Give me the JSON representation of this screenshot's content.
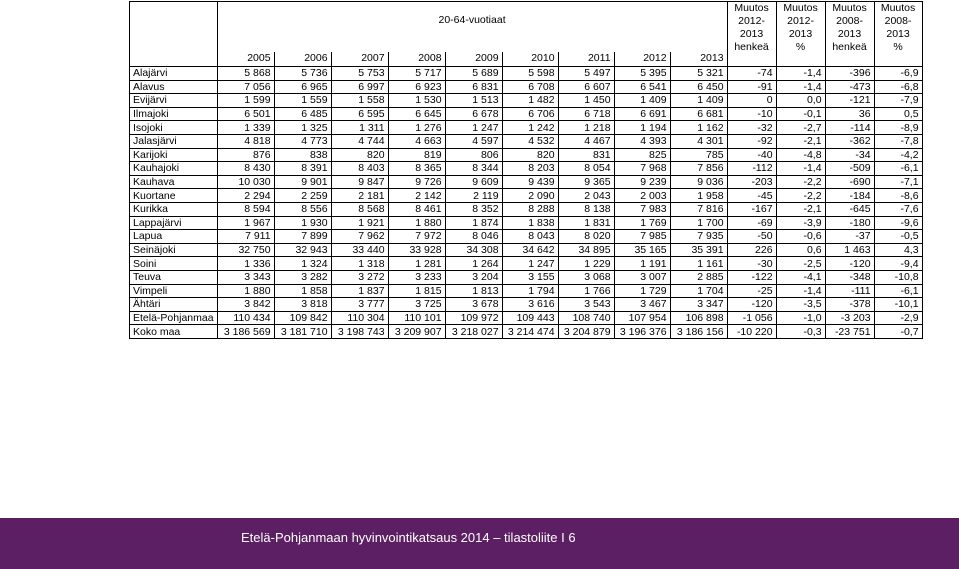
{
  "header": {
    "group_title": "20-64-vuotiaat",
    "years": [
      "2005",
      "2006",
      "2007",
      "2008",
      "2009",
      "2010",
      "2011",
      "2012",
      "2013"
    ],
    "change_cols": [
      {
        "lines": [
          "Muutos",
          "2012-",
          "2013",
          "henkeä"
        ]
      },
      {
        "lines": [
          "Muutos",
          "2012-",
          "2013",
          "%"
        ]
      },
      {
        "lines": [
          "Muutos",
          "2008-",
          "2013",
          "henkeä"
        ]
      },
      {
        "lines": [
          "Muutos",
          "2008-",
          "2013",
          "%"
        ]
      }
    ]
  },
  "rows": [
    {
      "name": "Alajärvi",
      "values": [
        "5 868",
        "5 736",
        "5 753",
        "5 717",
        "5 689",
        "5 598",
        "5 497",
        "5 395",
        "5 321",
        "-74",
        "-1,4",
        "-396",
        "-6,9"
      ]
    },
    {
      "name": "Alavus",
      "values": [
        "7 056",
        "6 965",
        "6 997",
        "6 923",
        "6 831",
        "6 708",
        "6 607",
        "6 541",
        "6 450",
        "-91",
        "-1,4",
        "-473",
        "-6,8"
      ]
    },
    {
      "name": "Evijärvi",
      "values": [
        "1 599",
        "1 559",
        "1 558",
        "1 530",
        "1 513",
        "1 482",
        "1 450",
        "1 409",
        "1 409",
        "0",
        "0,0",
        "-121",
        "-7,9"
      ]
    },
    {
      "name": "Ilmajoki",
      "values": [
        "6 501",
        "6 485",
        "6 595",
        "6 645",
        "6 678",
        "6 706",
        "6 718",
        "6 691",
        "6 681",
        "-10",
        "-0,1",
        "36",
        "0,5"
      ]
    },
    {
      "name": "Isojoki",
      "values": [
        "1 339",
        "1 325",
        "1 311",
        "1 276",
        "1 247",
        "1 242",
        "1 218",
        "1 194",
        "1 162",
        "-32",
        "-2,7",
        "-114",
        "-8,9"
      ]
    },
    {
      "name": "Jalasjärvi",
      "values": [
        "4 818",
        "4 773",
        "4 744",
        "4 663",
        "4 597",
        "4 532",
        "4 467",
        "4 393",
        "4 301",
        "-92",
        "-2,1",
        "-362",
        "-7,8"
      ]
    },
    {
      "name": "Karijoki",
      "values": [
        "876",
        "838",
        "820",
        "819",
        "806",
        "820",
        "831",
        "825",
        "785",
        "-40",
        "-4,8",
        "-34",
        "-4,2"
      ]
    },
    {
      "name": "Kauhajoki",
      "values": [
        "8 430",
        "8 391",
        "8 403",
        "8 365",
        "8 344",
        "8 203",
        "8 054",
        "7 968",
        "7 856",
        "-112",
        "-1,4",
        "-509",
        "-6,1"
      ]
    },
    {
      "name": "Kauhava",
      "values": [
        "10 030",
        "9 901",
        "9 847",
        "9 726",
        "9 609",
        "9 439",
        "9 365",
        "9 239",
        "9 036",
        "-203",
        "-2,2",
        "-690",
        "-7,1"
      ]
    },
    {
      "name": "Kuortane",
      "values": [
        "2 294",
        "2 259",
        "2 181",
        "2 142",
        "2 119",
        "2 090",
        "2 043",
        "2 003",
        "1 958",
        "-45",
        "-2,2",
        "-184",
        "-8,6"
      ]
    },
    {
      "name": "Kurikka",
      "values": [
        "8 594",
        "8 556",
        "8 568",
        "8 461",
        "8 352",
        "8 288",
        "8 138",
        "7 983",
        "7 816",
        "-167",
        "-2,1",
        "-645",
        "-7,6"
      ]
    },
    {
      "name": "Lappajärvi",
      "values": [
        "1 967",
        "1 930",
        "1 921",
        "1 880",
        "1 874",
        "1 838",
        "1 831",
        "1 769",
        "1 700",
        "-69",
        "-3,9",
        "-180",
        "-9,6"
      ]
    },
    {
      "name": "Lapua",
      "values": [
        "7 911",
        "7 899",
        "7 962",
        "7 972",
        "8 046",
        "8 043",
        "8 020",
        "7 985",
        "7 935",
        "-50",
        "-0,6",
        "-37",
        "-0,5"
      ]
    },
    {
      "name": "Seinäjoki",
      "values": [
        "32 750",
        "32 943",
        "33 440",
        "33 928",
        "34 308",
        "34 642",
        "34 895",
        "35 165",
        "35 391",
        "226",
        "0,6",
        "1 463",
        "4,3"
      ]
    },
    {
      "name": "Soini",
      "values": [
        "1 336",
        "1 324",
        "1 318",
        "1 281",
        "1 264",
        "1 247",
        "1 229",
        "1 191",
        "1 161",
        "-30",
        "-2,5",
        "-120",
        "-9,4"
      ]
    },
    {
      "name": "Teuva",
      "values": [
        "3 343",
        "3 282",
        "3 272",
        "3 233",
        "3 204",
        "3 155",
        "3 068",
        "3 007",
        "2 885",
        "-122",
        "-4,1",
        "-348",
        "-10,8"
      ]
    },
    {
      "name": "Vimpeli",
      "values": [
        "1 880",
        "1 858",
        "1 837",
        "1 815",
        "1 813",
        "1 794",
        "1 766",
        "1 729",
        "1 704",
        "-25",
        "-1,4",
        "-111",
        "-6,1"
      ]
    },
    {
      "name": "Ähtäri",
      "values": [
        "3 842",
        "3 818",
        "3 777",
        "3 725",
        "3 678",
        "3 616",
        "3 543",
        "3 467",
        "3 347",
        "-120",
        "-3,5",
        "-378",
        "-10,1"
      ]
    },
    {
      "name": "Etelä-Pohjanmaa",
      "values": [
        "110 434",
        "109 842",
        "110 304",
        "110 101",
        "109 972",
        "109 443",
        "108 740",
        "107 954",
        "106 898",
        "-1 056",
        "-1,0",
        "-3 203",
        "-2,9"
      ]
    },
    {
      "name": "Koko maa",
      "values": [
        "3 186 569",
        "3 181 710",
        "3 198 743",
        "3 209 907",
        "3 218 027",
        "3 214 474",
        "3 204 879",
        "3 196 376",
        "3 186 156",
        "-10 220",
        "-0,3",
        "-23 751",
        "-0,7"
      ]
    }
  ],
  "footer": {
    "text": "Etelä-Pohjanmaan hyvinvointikatsaus 2014 – tilastoliite I 6",
    "color": "#5c1f63"
  }
}
